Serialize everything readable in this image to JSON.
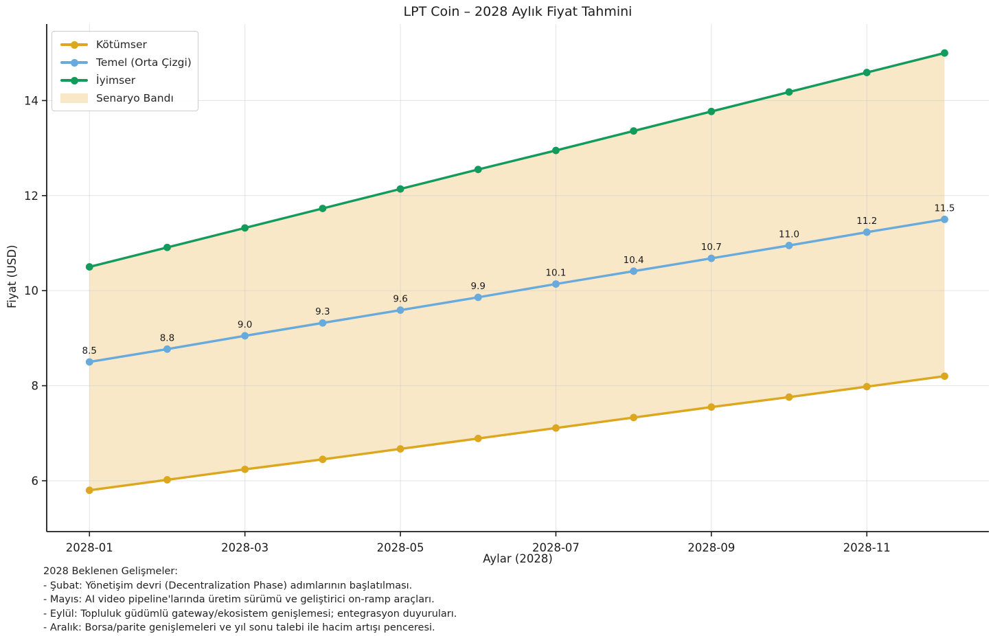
{
  "chart_data": {
    "type": "line",
    "title": "LPT Coin – 2028 Aylık Fiyat Tahmini",
    "xlabel": "Aylar (2028)",
    "ylabel": "Fiyat (USD)",
    "grid": true,
    "legend_position": "upper-left",
    "categories": [
      "2028-01",
      "2028-02",
      "2028-03",
      "2028-04",
      "2028-05",
      "2028-06",
      "2028-07",
      "2028-08",
      "2028-09",
      "2028-10",
      "2028-11",
      "2028-12"
    ],
    "x_ticks": [
      {
        "index": 0,
        "label": "2028-01"
      },
      {
        "index": 2,
        "label": "2028-03"
      },
      {
        "index": 4,
        "label": "2028-05"
      },
      {
        "index": 6,
        "label": "2028-07"
      },
      {
        "index": 8,
        "label": "2028-09"
      },
      {
        "index": 10,
        "label": "2028-11"
      }
    ],
    "y_ticks": [
      6,
      8,
      10,
      12,
      14
    ],
    "ylim": [
      4.93,
      15.61
    ],
    "xlim_index": [
      -0.55,
      11.57
    ],
    "series": [
      {
        "name": "Kötümser",
        "color": "#DCA71F",
        "values": [
          5.8,
          6.02,
          6.24,
          6.45,
          6.67,
          6.89,
          7.11,
          7.33,
          7.55,
          7.76,
          7.98,
          8.2
        ]
      },
      {
        "name": "Temel (Orta Çizgi)",
        "color": "#67AADB",
        "values": [
          8.5,
          8.77,
          9.05,
          9.32,
          9.59,
          9.86,
          10.14,
          10.41,
          10.68,
          10.95,
          11.23,
          11.5
        ],
        "point_labels": [
          "8.5",
          "8.8",
          "9.0",
          "9.3",
          "9.6",
          "9.9",
          "10.1",
          "10.4",
          "10.7",
          "11.0",
          "11.2",
          "11.5"
        ]
      },
      {
        "name": "İyimser",
        "color": "#139B5D",
        "values": [
          10.5,
          10.91,
          11.32,
          11.73,
          12.14,
          12.55,
          12.95,
          13.36,
          13.77,
          14.18,
          14.59,
          15.0
        ]
      }
    ],
    "band": {
      "name": "Senaryo Bandı",
      "color": "#F9E8C8",
      "lower_series": "Kötümser",
      "upper_series": "İyimser"
    }
  },
  "annotation": {
    "heading": "2028 Beklenen Gelişmeler:",
    "lines": [
      "- Şubat: Yönetişim devri (Decentralization Phase) adımlarının başlatılması.",
      "- Mayıs: AI video pipeline'larında üretim sürümü ve geliştirici on-ramp araçları.",
      "- Eylül: Topluluk güdümlü gateway/ekosistem genişlemesi; entegrasyon duyuruları.",
      "- Aralık: Borsa/parite genişlemeleri ve yıl sonu talebi ile hacim artışı penceresi."
    ]
  }
}
